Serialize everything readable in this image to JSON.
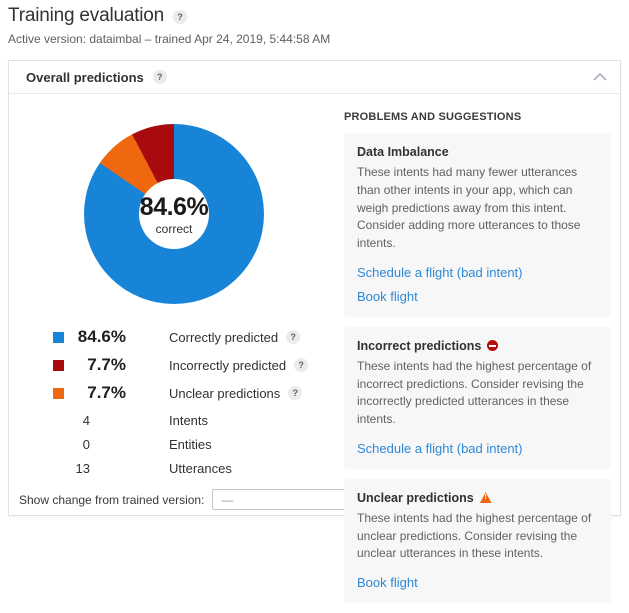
{
  "page": {
    "title": "Training evaluation",
    "subtitle": "Active version: dataimbal – trained Apr 24, 2019, 5:44:58 AM"
  },
  "panel": {
    "title": "Overall predictions"
  },
  "icons": {
    "help": "?",
    "collapse": "chevron-up",
    "incorrect_badge": "blocked-circle",
    "unclear_badge": "warning-triangle"
  },
  "chart_data": {
    "type": "pie",
    "title": "Overall predictions",
    "center_value": "84.6%",
    "center_label": "correct",
    "slices": [
      {
        "label": "Correctly predicted",
        "value": 84.6,
        "pct_label": "84.6%",
        "color": "#1784d8"
      },
      {
        "label": "Incorrectly predicted",
        "value": 7.7,
        "pct_label": "7.7%",
        "color": "#a80b0d"
      },
      {
        "label": "Unclear predictions",
        "value": 7.7,
        "pct_label": "7.7%",
        "color": "#ef670f"
      }
    ],
    "render_order": [
      0,
      2,
      1
    ],
    "legend_position": "below-left"
  },
  "stats": {
    "items": [
      {
        "value": "4",
        "label": "Intents"
      },
      {
        "value": "0",
        "label": "Entities"
      },
      {
        "value": "13",
        "label": "Utterances"
      }
    ]
  },
  "footer": {
    "label": "Show change from trained version:",
    "dropdown_value": "—"
  },
  "suggestions": {
    "heading": "PROBLEMS AND SUGGESTIONS",
    "cards": [
      {
        "title": "Data Imbalance",
        "icon": "none",
        "body": "These intents had many fewer utterances than other intents in your app, which can weigh predictions away from this intent. Consider adding more utterances to those intents.",
        "links": [
          "Schedule a flight (bad intent)",
          "Book flight"
        ]
      },
      {
        "title": "Incorrect predictions",
        "icon": "blocked",
        "body": "These intents had the highest percentage of incorrect predictions. Consider revising the incorrectly predicted utterances in these intents.",
        "links": [
          "Schedule a flight (bad intent)"
        ]
      },
      {
        "title": "Unclear predictions",
        "icon": "warning",
        "body": "These intents had the highest percentage of unclear predictions. Consider revising the unclear utterances in these intents.",
        "links": [
          "Book flight"
        ]
      }
    ]
  }
}
